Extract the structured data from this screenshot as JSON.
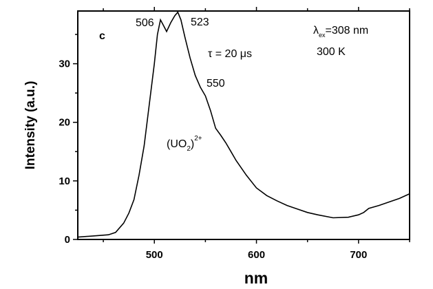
{
  "chart_data": {
    "type": "line",
    "title": "",
    "xlabel": "nm",
    "ylabel": "Intensity (a.u.)",
    "xlim": [
      425,
      750
    ],
    "ylim": [
      0,
      39
    ],
    "xticks": [
      500,
      600,
      700
    ],
    "yticks": [
      0,
      10,
      20,
      30
    ],
    "grid": false,
    "line_color": "#000000",
    "series": [
      {
        "x": [
          425,
          440,
          455,
          462,
          470,
          475,
          480,
          485,
          490,
          495,
          500,
          503,
          506,
          509,
          512,
          516,
          520,
          523,
          526,
          530,
          535,
          540,
          545,
          550,
          555,
          560,
          565,
          570,
          575,
          580,
          590,
          600,
          610,
          620,
          630,
          640,
          650,
          660,
          675,
          690,
          700,
          705,
          710,
          720,
          730,
          740,
          750
        ],
        "values": [
          0.4,
          0.6,
          0.8,
          1.2,
          2.8,
          4.5,
          6.8,
          11,
          16,
          23,
          30,
          35,
          37.5,
          36.5,
          35.5,
          37,
          38.2,
          38.8,
          37.5,
          34.5,
          31,
          28,
          26,
          24.5,
          22,
          19,
          17.8,
          16.5,
          15,
          13.5,
          11,
          8.8,
          7.5,
          6.6,
          5.8,
          5.2,
          4.6,
          4.2,
          3.7,
          3.8,
          4.2,
          4.6,
          5.3,
          5.8,
          6.4,
          7.0,
          7.8
        ]
      }
    ],
    "annotations": {
      "panel": "c",
      "peak1": "506",
      "peak2": "523",
      "peak3": "550",
      "tau": "τ = 20 μs",
      "species_base": "(UO",
      "species_sub": "2",
      "species_close": ")",
      "species_sup": "2+",
      "lambda": "λ",
      "lambda_sub": "ex",
      "lambda_val": "=308 nm",
      "temp": "300 K"
    }
  }
}
